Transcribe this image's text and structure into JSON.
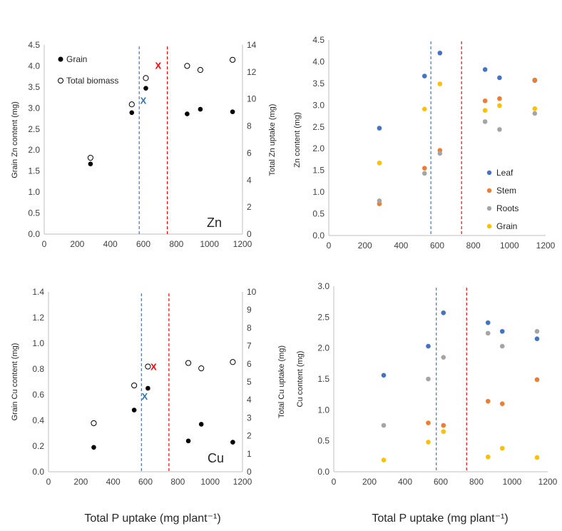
{
  "colors": {
    "leaf": "#4472c4",
    "stem": "#ed7d31",
    "roots": "#a5a5a5",
    "grain": "#ffc000",
    "blue_line": "#4472c4",
    "red_line": "#ff0000",
    "red_x": "#ff0000",
    "blue_x": "#2e75b6"
  },
  "bottom_labels": {
    "left": "Total P uptake (mg plant⁻¹)",
    "right": "Total P uptake (mg plant⁻¹)"
  },
  "chart_data": [
    {
      "id": "zn_grain_total",
      "type": "scatter",
      "element": "Zn",
      "xlabel": "",
      "ylabel": "Grain Zn content (mg)",
      "y2label": "Total Zn uptake (mg)",
      "xlim": [
        0,
        1200
      ],
      "xticks": [
        0,
        200,
        400,
        600,
        800,
        1000,
        1200
      ],
      "ylim": [
        0,
        4.5
      ],
      "yticks": [
        "0.0",
        "0.5",
        "1.0",
        "1.5",
        "2.0",
        "2.5",
        "3.0",
        "3.5",
        "4.0",
        "4.5"
      ],
      "y2lim": [
        0,
        14
      ],
      "y2ticks": [
        "0",
        "2",
        "4",
        "6",
        "8",
        "10",
        "12",
        "14"
      ],
      "legend_position": "top-left",
      "series": [
        {
          "name": "Grain",
          "marker": "filled",
          "axis": "left",
          "x": [
            280,
            530,
            615,
            865,
            945,
            1140
          ],
          "y": [
            1.67,
            2.89,
            3.47,
            2.86,
            2.97,
            2.91
          ]
        },
        {
          "name": "Total biomass",
          "marker": "open",
          "axis": "right",
          "x": [
            280,
            530,
            615,
            865,
            945,
            1140
          ],
          "y": [
            5.65,
            9.6,
            11.55,
            12.45,
            12.15,
            12.9
          ]
        }
      ],
      "markers": [
        {
          "symbol": "x",
          "color": "red_x",
          "x": 690,
          "y": 4.02
        },
        {
          "symbol": "x",
          "color": "blue_x",
          "x": 600,
          "y": 3.18
        }
      ],
      "vlines": [
        {
          "x": 575,
          "color": "blue_line"
        },
        {
          "x": 745,
          "color": "red_line"
        }
      ]
    },
    {
      "id": "zn_organs",
      "type": "scatter",
      "xlabel": "",
      "ylabel": "Zn content (mg)",
      "xlim": [
        0,
        1200
      ],
      "xticks": [
        0,
        200,
        400,
        600,
        800,
        1000,
        1200
      ],
      "ylim": [
        0,
        4.5
      ],
      "yticks": [
        "0.0",
        "0.5",
        "1.0",
        "1.5",
        "2.0",
        "2.5",
        "3.0",
        "3.5",
        "4.0",
        "4.5"
      ],
      "legend_position": "bottom-right",
      "series": [
        {
          "name": "Leaf",
          "color": "leaf",
          "x": [
            280,
            530,
            615,
            865,
            945,
            1140
          ],
          "y": [
            2.47,
            3.67,
            4.2,
            3.82,
            3.63,
            3.57
          ]
        },
        {
          "name": "Stem",
          "color": "stem",
          "x": [
            280,
            530,
            615,
            865,
            945,
            1140
          ],
          "y": [
            0.73,
            1.55,
            1.96,
            3.1,
            3.15,
            3.58
          ]
        },
        {
          "name": "Roots",
          "color": "roots",
          "x": [
            280,
            530,
            615,
            865,
            945,
            1140
          ],
          "y": [
            0.8,
            1.43,
            1.89,
            2.62,
            2.44,
            2.81
          ]
        },
        {
          "name": "Grain",
          "color": "grain",
          "x": [
            280,
            530,
            615,
            865,
            945,
            1140
          ],
          "y": [
            1.67,
            2.91,
            3.49,
            2.88,
            2.99,
            2.92
          ]
        }
      ],
      "vlines": [
        {
          "x": 565,
          "color": "blue_line"
        },
        {
          "x": 735,
          "color": "red_line"
        }
      ]
    },
    {
      "id": "cu_grain_total",
      "type": "scatter",
      "element": "Cu",
      "xlabel": "",
      "ylabel": "Grain Cu  content (mg)",
      "y2label": "Total Cu uptake (mg)",
      "xlim": [
        0,
        1200
      ],
      "xticks": [
        0,
        200,
        400,
        600,
        800,
        1000,
        1200
      ],
      "ylim": [
        0,
        1.4
      ],
      "yticks": [
        "0.0",
        "0.2",
        "0.4",
        "0.6",
        "0.8",
        "1.0",
        "1.2",
        "1.4"
      ],
      "y2lim": [
        0,
        10
      ],
      "y2ticks": [
        "0",
        "1",
        "2",
        "3",
        "4",
        "5",
        "6",
        "7",
        "8",
        "9",
        "10"
      ],
      "series": [
        {
          "name": "Grain",
          "marker": "filled",
          "axis": "left",
          "x": [
            280,
            530,
            615,
            865,
            945,
            1140
          ],
          "y": [
            0.19,
            0.48,
            0.65,
            0.24,
            0.37,
            0.23
          ]
        },
        {
          "name": "Total biomass",
          "marker": "open",
          "axis": "right",
          "x": [
            280,
            530,
            615,
            865,
            945,
            1140
          ],
          "y": [
            2.7,
            4.8,
            5.85,
            6.05,
            5.75,
            6.1
          ]
        }
      ],
      "markers": [
        {
          "symbol": "x",
          "color": "red_x",
          "x": 650,
          "y": 0.82
        },
        {
          "symbol": "x",
          "color": "blue_x",
          "x": 595,
          "y": 0.59
        }
      ],
      "vlines": [
        {
          "x": 575,
          "color": "blue_line"
        },
        {
          "x": 745,
          "color": "red_line"
        }
      ]
    },
    {
      "id": "cu_organs",
      "type": "scatter",
      "xlabel": "",
      "ylabel": "Cu content (mg)",
      "xlim": [
        0,
        1200
      ],
      "xticks": [
        0,
        200,
        400,
        600,
        800,
        1000,
        1200
      ],
      "ylim": [
        0,
        3.0
      ],
      "yticks": [
        "0.0",
        "0.5",
        "1.0",
        "1.5",
        "2.0",
        "2.5",
        "3.0"
      ],
      "series": [
        {
          "name": "Leaf",
          "color": "leaf",
          "x": [
            280,
            530,
            615,
            865,
            945,
            1140
          ],
          "y": [
            1.56,
            2.03,
            2.57,
            2.41,
            2.27,
            2.15
          ]
        },
        {
          "name": "Stem",
          "color": "stem",
          "x": [
            530,
            615,
            865,
            945,
            1140
          ],
          "y": [
            0.79,
            0.75,
            1.14,
            1.1,
            1.49
          ]
        },
        {
          "name": "Roots",
          "color": "roots",
          "x": [
            280,
            530,
            615,
            865,
            945,
            1140
          ],
          "y": [
            0.75,
            1.5,
            1.85,
            2.24,
            2.03,
            2.27
          ]
        },
        {
          "name": "Grain",
          "color": "grain",
          "x": [
            280,
            530,
            615,
            865,
            945,
            1140
          ],
          "y": [
            0.19,
            0.48,
            0.65,
            0.24,
            0.38,
            0.23
          ]
        }
      ],
      "vlines": [
        {
          "x": 575,
          "color": "blue_line"
        },
        {
          "x": 745,
          "color": "red_line"
        }
      ]
    }
  ]
}
